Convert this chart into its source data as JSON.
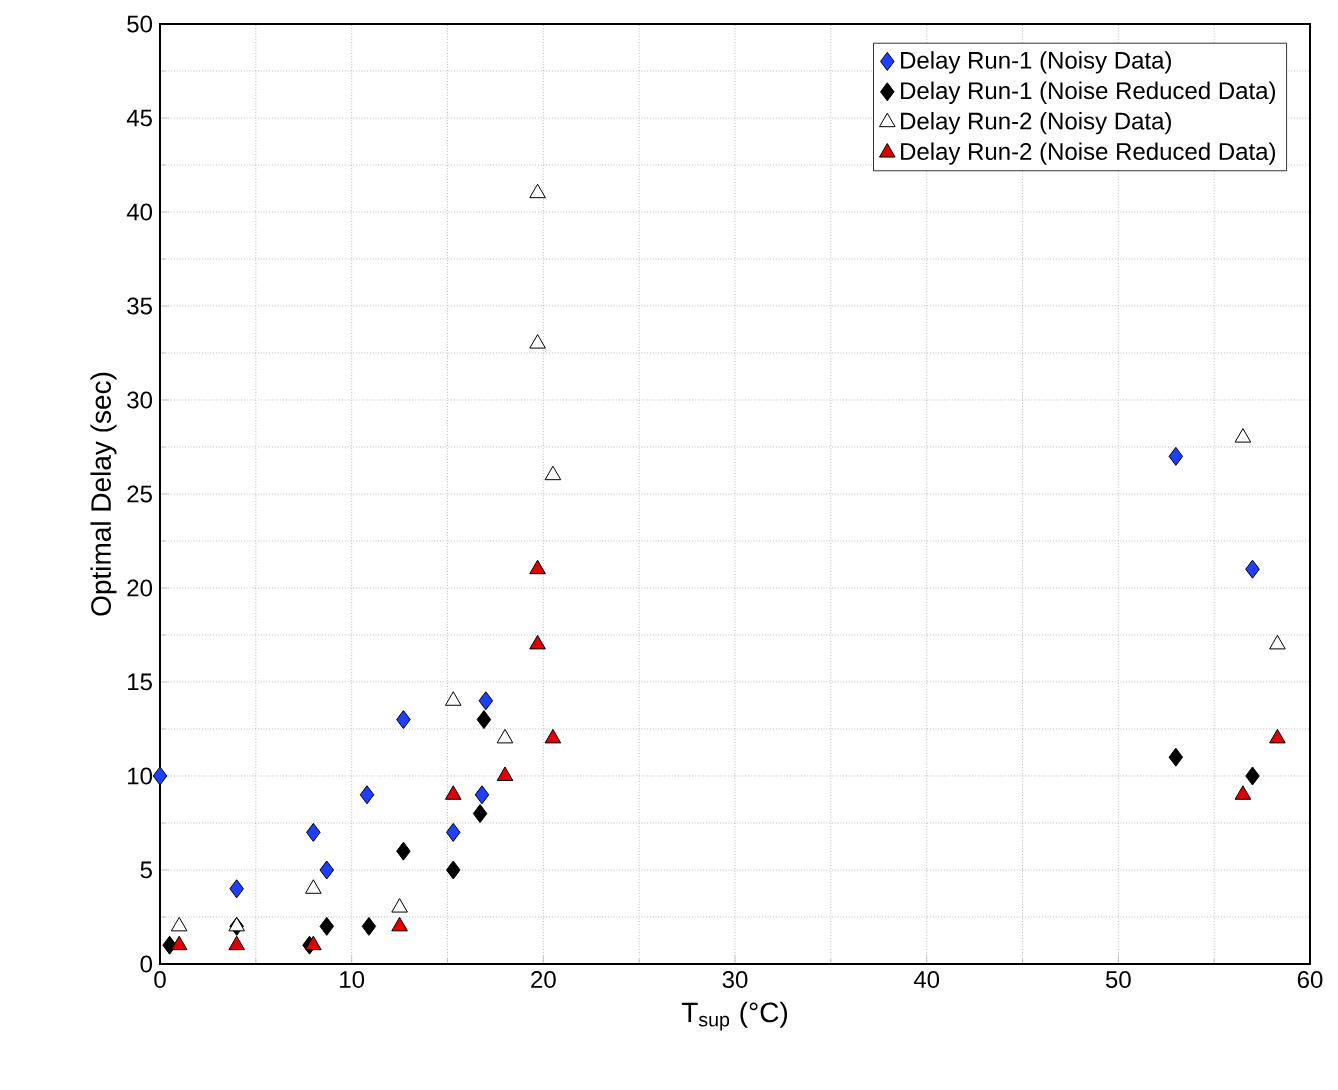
{
  "chart_data": {
    "type": "scatter",
    "xlabel": "T$_{sup}$ (°C)",
    "ylabel": "Optimal Delay (sec)",
    "xlim": [
      0,
      60
    ],
    "ylim": [
      0,
      50
    ],
    "xticks": [
      0,
      10,
      20,
      30,
      40,
      50,
      60
    ],
    "yticks": [
      0,
      5,
      10,
      15,
      20,
      25,
      30,
      35,
      40,
      45,
      50
    ],
    "grid": true,
    "legend": "top right",
    "series": [
      {
        "name": "Delay Run-1 (Noisy Data)",
        "color": "#1f3fff",
        "marker": "diamond",
        "x": [
          0,
          4,
          8,
          8.7,
          10.8,
          12.7,
          15.3,
          16.8,
          17,
          53,
          57
        ],
        "values": [
          10,
          4,
          7,
          5,
          9,
          13,
          7,
          9,
          14,
          27,
          21
        ]
      },
      {
        "name": "Delay Run-1 (Noise Reduced Data)",
        "color": "#000000",
        "marker": "diamond",
        "x": [
          0.5,
          4,
          7.8,
          8.7,
          10.9,
          12.7,
          15.3,
          16.7,
          16.9,
          53,
          57
        ],
        "values": [
          1,
          2,
          1,
          2,
          2,
          6,
          5,
          8,
          13,
          11,
          10
        ]
      },
      {
        "name": "Delay Run-2 (Noisy Data)",
        "color": "#ffffff",
        "marker": "triangle",
        "x": [
          1,
          4,
          8,
          12.5,
          15.3,
          18,
          19.7,
          19.7,
          20.5,
          56.5,
          58.3
        ],
        "values": [
          2,
          2,
          4,
          3,
          14,
          12,
          41,
          33,
          26,
          28,
          17
        ]
      },
      {
        "name": "Delay Run-2 (Noise Reduced Data)",
        "color": "#e00000",
        "marker": "triangle",
        "x": [
          1,
          4,
          8,
          12.5,
          15.3,
          18,
          19.7,
          19.7,
          20.5,
          56.5,
          58.3
        ],
        "values": [
          1,
          1,
          1,
          2,
          9,
          10,
          21,
          17,
          12,
          9,
          12
        ]
      }
    ]
  }
}
